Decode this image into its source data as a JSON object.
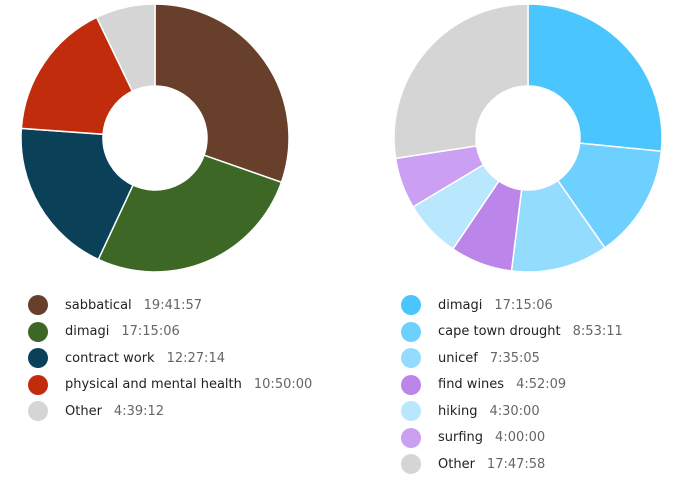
{
  "chart_data": [
    {
      "type": "pie",
      "categories": [
        "sabbatical",
        "dimagi",
        "contract work",
        "physical and mental health",
        "Other"
      ],
      "durations": [
        "19:41:57",
        "17:15:06",
        "12:27:14",
        "10:50:00",
        "4:39:12"
      ],
      "values": [
        19.7,
        17.25,
        12.45,
        10.83,
        4.65
      ],
      "colors": [
        "#673f2b",
        "#3c6724",
        "#0a4158",
        "#c02c0c",
        "#d5d5d5"
      ]
    },
    {
      "type": "pie",
      "categories": [
        "dimagi",
        "cape town drought",
        "unicef",
        "find wines",
        "hiking",
        "surfing",
        "Other"
      ],
      "durations": [
        "17:15:06",
        "8:53:11",
        "7:35:05",
        "4:52:09",
        "4:30:00",
        "4:00:00",
        "17:47:58"
      ],
      "values": [
        17.25,
        8.89,
        7.58,
        4.87,
        4.5,
        4.0,
        17.8
      ],
      "colors": [
        "#4bc5fe",
        "#6dd0fe",
        "#94dcfe",
        "#bb85e9",
        "#b9e7fe",
        "#cb9ff1",
        "#d5d5d5"
      ]
    }
  ]
}
